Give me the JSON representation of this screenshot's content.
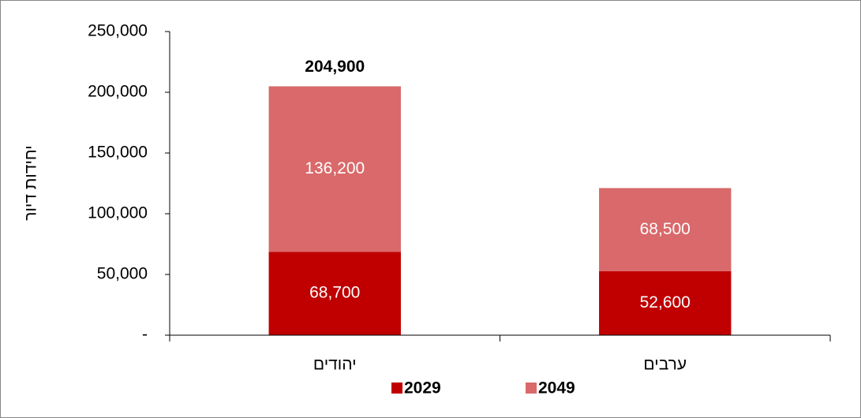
{
  "chart_data": {
    "type": "stacked_bar",
    "categories": [
      "יהודים",
      "ערבים"
    ],
    "series": [
      {
        "name": "2029",
        "color": "#c00000",
        "values": [
          68700,
          52600
        ],
        "value_labels": [
          "68,700",
          "52,600"
        ]
      },
      {
        "name": "2049",
        "color": "#d9696a",
        "values": [
          136200,
          68500
        ],
        "value_labels": [
          "136,200",
          "68,500"
        ]
      }
    ],
    "totals": [
      204900,
      null
    ],
    "total_labels": [
      "204,900",
      null
    ],
    "y_label": "יחידות דיור",
    "ylim": [
      0,
      250000
    ],
    "yticks": [
      {
        "value": 0,
        "label": "-"
      },
      {
        "value": 50000,
        "label": "50,000"
      },
      {
        "value": 100000,
        "label": "100,000"
      },
      {
        "value": 150000,
        "label": "150,000"
      },
      {
        "value": 200000,
        "label": "200,000"
      },
      {
        "value": 250000,
        "label": "250,000"
      }
    ],
    "grid": false
  }
}
